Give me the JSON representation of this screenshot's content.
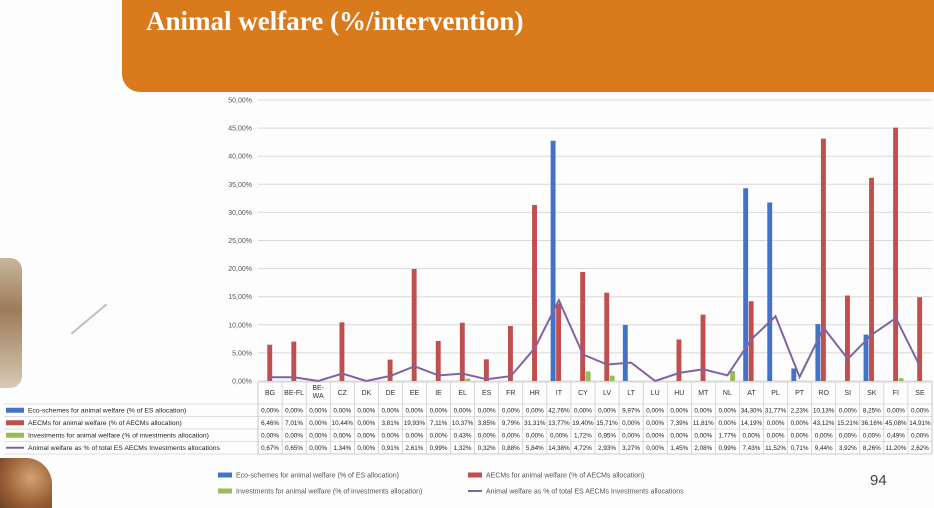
{
  "slide": {
    "title": "Animal welfare (%/intervention)",
    "page_number": "94"
  },
  "colors": {
    "eco": "#4472c4",
    "aecm": "#c0504d",
    "inv": "#9bbb59",
    "aw": "#8064a2",
    "header": "#d97a1d"
  },
  "chart_data": {
    "type": "bar",
    "categories": [
      "BG",
      "BE-FL",
      "BE-WA",
      "CZ",
      "DK",
      "DE",
      "EE",
      "IE",
      "EL",
      "ES",
      "FR",
      "HR",
      "IT",
      "CY",
      "LV",
      "LT",
      "LU",
      "HU",
      "MT",
      "NL",
      "AT",
      "PL",
      "PT",
      "RO",
      "SI",
      "SK",
      "FI",
      "SE"
    ],
    "category_display": [
      "BG",
      "BE-FL",
      "BE-\nWA",
      "CZ",
      "DK",
      "DE",
      "EE",
      "IE",
      "EL",
      "ES",
      "FR",
      "HR",
      "IT",
      "CY",
      "LV",
      "LT",
      "LU",
      "HU",
      "MT",
      "NL",
      "AT",
      "PL",
      "PT",
      "RO",
      "SI",
      "SK",
      "FI",
      "SE"
    ],
    "ylim": [
      0,
      50
    ],
    "yticks": [
      "0,00%",
      "5,00%",
      "10,00%",
      "15,00%",
      "20,00%",
      "25,00%",
      "30,00%",
      "35,00%",
      "40,00%",
      "45,00%",
      "50,00%"
    ],
    "series": [
      {
        "name": "Eco-schemes for animal welfare (% of ES allocation)",
        "kind": "bar",
        "color": "#4472c4",
        "values": [
          0,
          0,
          0,
          0,
          0,
          0,
          0,
          0,
          0,
          0,
          0,
          0,
          42.76,
          0,
          0,
          9.97,
          0,
          0,
          0,
          0,
          34.3,
          31.77,
          2.23,
          10.13,
          0,
          8.25,
          0,
          0
        ],
        "labels": [
          "0,00%",
          "0,00%",
          "0,00%",
          "0,00%",
          "0,00%",
          "0,00%",
          "0,00%",
          "0,00%",
          "0,00%",
          "0,00%",
          "0,00%",
          "0,00%",
          "42,76%",
          "0,00%",
          "0,00%",
          "9,97%",
          "0,00%",
          "0,00%",
          "0,00%",
          "0,00%",
          "34,30%",
          "31,77%",
          "2,23%",
          "10,13%",
          "0,00%",
          "8,25%",
          "0,00%",
          "0,00%"
        ]
      },
      {
        "name": "AECMs for animal welfare (% of AECMs allocation)",
        "kind": "bar",
        "color": "#c0504d",
        "values": [
          6.46,
          7.01,
          0,
          10.44,
          0,
          3.81,
          19.93,
          7.11,
          10.37,
          3.85,
          9.79,
          31.31,
          13.77,
          19.4,
          15.71,
          0,
          0,
          7.39,
          11.81,
          0,
          14.19,
          0,
          0,
          43.12,
          15.21,
          36.16,
          45.08,
          14.91
        ],
        "labels": [
          "6,46%",
          "7,01%",
          "0,00%",
          "10,44%",
          "0,00%",
          "3,81%",
          "19,93%",
          "7,11%",
          "10,37%",
          "3,85%",
          "9,79%",
          "31,31%",
          "13,77%",
          "19,40%",
          "15,71%",
          "0,00%",
          "0,00%",
          "7,39%",
          "11,81%",
          "0,00%",
          "14,19%",
          "0,00%",
          "0,00%",
          "43,12%",
          "15,21%",
          "36,16%",
          "45,08%",
          "14,91%"
        ]
      },
      {
        "name": "Investments for animal welfare (% of investments allocation)",
        "kind": "bar",
        "color": "#9bbb59",
        "values": [
          0,
          0,
          0,
          0,
          0,
          0,
          0,
          0,
          0.43,
          0,
          0,
          0,
          0,
          1.72,
          0.95,
          0,
          0,
          0,
          0,
          1.77,
          0,
          0,
          0,
          0,
          0,
          0,
          0.49,
          0
        ],
        "labels": [
          "0,00%",
          "0,00%",
          "0,00%",
          "0,00%",
          "0,00%",
          "0,00%",
          "0,00%",
          "0,00%",
          "0,43%",
          "0,00%",
          "0,00%",
          "0,00%",
          "0,00%",
          "1,72%",
          "0,95%",
          "0,00%",
          "0,00%",
          "0,00%",
          "0,00%",
          "1,77%",
          "0,00%",
          "0,00%",
          "0,00%",
          "0,00%",
          "0,00%",
          "0,00%",
          "0,49%",
          "0,00%"
        ]
      },
      {
        "name": "Animal welfare as % of total ES AECMs Investments allocations",
        "kind": "line",
        "color": "#8064a2",
        "values": [
          0.67,
          0.65,
          0,
          1.34,
          0,
          0.91,
          2.61,
          0.99,
          1.32,
          0.32,
          0.88,
          5.84,
          14.38,
          4.72,
          2.93,
          3.27,
          0,
          1.45,
          2.08,
          0.99,
          7.43,
          11.52,
          0.71,
          9.44,
          3.92,
          8.26,
          11.2,
          2.62
        ],
        "labels": [
          "0,67%",
          "0,65%",
          "0,00%",
          "1,34%",
          "0,00%",
          "0,91%",
          "2,61%",
          "0,99%",
          "1,32%",
          "0,32%",
          "0,88%",
          "5,84%",
          "14,38%",
          "4,72%",
          "2,93%",
          "3,27%",
          "0,00%",
          "1,45%",
          "2,08%",
          "0,99%",
          "7,43%",
          "11,52%",
          "0,71%",
          "9,44%",
          "3,92%",
          "8,26%",
          "11,20%",
          "2,62%"
        ]
      }
    ],
    "row_labels": [
      "Eco-schemes for animal welfare (% of ES allocation)",
      "AECMs for animal welfare (% of AECMs allocation)",
      "Investments for animal welfare (% of investments allocation)",
      "Animal welfare as % of total ES AECMs Investments allocations"
    ],
    "legend": {
      "placement": "bottom"
    },
    "grid": true
  }
}
